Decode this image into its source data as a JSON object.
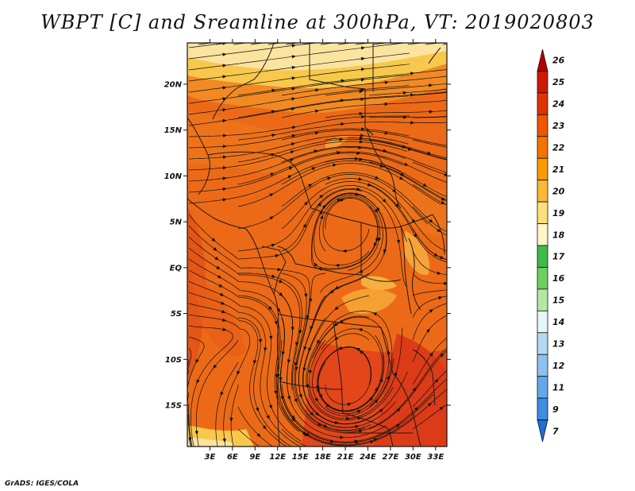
{
  "title": "WBPT [C] and Sreamline at 300hPa, VT: 2019020803",
  "credit": "GrADS: IGES/COLA",
  "map": {
    "lat_labels": [
      "20N",
      "15N",
      "10N",
      "5N",
      "EQ",
      "5S",
      "10S",
      "15S"
    ],
    "lat_values": [
      20,
      15,
      10,
      5,
      0,
      -5,
      -10,
      -15
    ],
    "lon_labels": [
      "3E",
      "6E",
      "9E",
      "12E",
      "15E",
      "18E",
      "21E",
      "24E",
      "27E",
      "30E",
      "33E"
    ],
    "lon_values": [
      3,
      6,
      9,
      12,
      15,
      18,
      21,
      24,
      27,
      30,
      33
    ],
    "lat_range": [
      -19.5,
      24.5
    ],
    "lon_range": [
      0,
      34.5
    ],
    "variable": "WBPT",
    "units": "C",
    "level": "300hPa"
  },
  "colorbar": {
    "labels": [
      "26",
      "25",
      "24",
      "23",
      "22",
      "21",
      "20",
      "19",
      "18",
      "17",
      "16",
      "15",
      "14",
      "13",
      "12",
      "11",
      "9",
      "7"
    ],
    "colors": [
      "#b30000",
      "#cc1a00",
      "#e03400",
      "#f05500",
      "#f57300",
      "#fa9a00",
      "#fcb838",
      "#fde07a",
      "#fff6c8",
      "#3fb94a",
      "#6ccf5f",
      "#b5e6a5",
      "#e6f6f6",
      "#b3d9f2",
      "#8cc3ee",
      "#62a8e8",
      "#3c8ee0",
      "#1e6fd6"
    ]
  },
  "field_colors": {
    "cool_yellow": "#f8c84c",
    "orange": "#f28a24",
    "deep_orange": "#ec6a17",
    "red_orange": "#e14d16",
    "pale": "#fbe4a0"
  }
}
